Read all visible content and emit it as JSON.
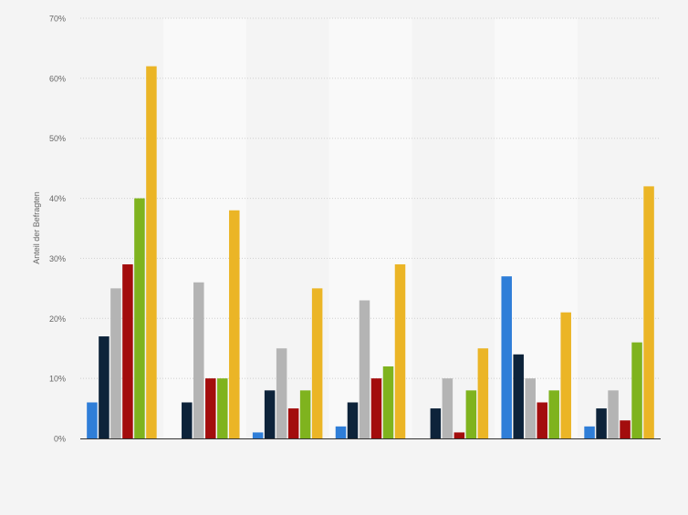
{
  "chart_data": {
    "type": "bar",
    "title": "",
    "xlabel": "",
    "ylabel": "Anteil der Befragten",
    "ylim": [
      0,
      70
    ],
    "yticks": [
      0,
      10,
      20,
      30,
      40,
      50,
      60,
      70
    ],
    "ytick_labels": [
      "0%",
      "10%",
      "20%",
      "30%",
      "40%",
      "50%",
      "60%",
      "70%"
    ],
    "grid": true,
    "legend": "none",
    "categories": [
      "",
      "",
      "",
      "",
      "",
      "",
      ""
    ],
    "series": [
      {
        "color": "#2f7ed8",
        "values": [
          6,
          0,
          1,
          2,
          0,
          27,
          2
        ]
      },
      {
        "color": "#0d233a",
        "values": [
          17,
          6,
          8,
          6,
          5,
          14,
          5
        ]
      },
      {
        "color": "#b4b4b4",
        "values": [
          25,
          26,
          15,
          23,
          10,
          10,
          8
        ]
      },
      {
        "color": "#a30d0d",
        "values": [
          29,
          10,
          5,
          10,
          1,
          6,
          3
        ]
      },
      {
        "color": "#7fb31e",
        "values": [
          40,
          10,
          8,
          12,
          8,
          8,
          16
        ]
      },
      {
        "color": "#ebb526",
        "values": [
          62,
          38,
          25,
          29,
          15,
          21,
          42
        ]
      }
    ]
  }
}
